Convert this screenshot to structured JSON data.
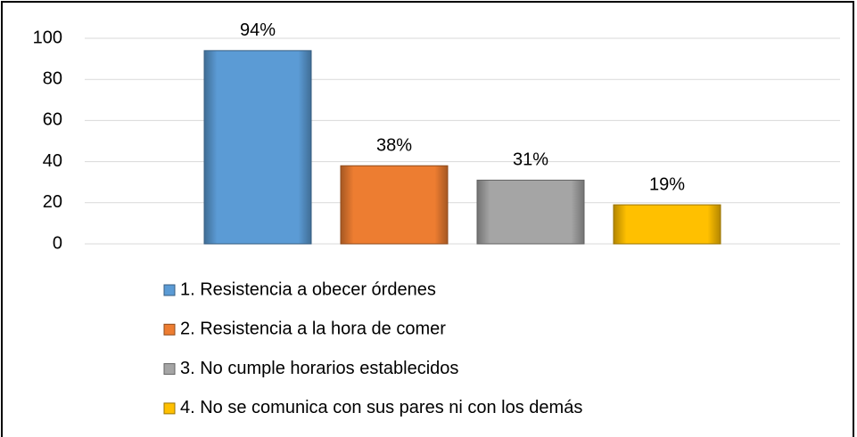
{
  "chart_data": {
    "type": "bar",
    "series": [
      {
        "name": "1. Resistencia a obecer órdenes",
        "color": "#5b9bd5",
        "values": [
          94
        ],
        "value_labels": [
          "94%"
        ]
      },
      {
        "name": "2. Resistencia a la hora de comer",
        "color": "#ed7d31",
        "values": [
          38
        ],
        "value_labels": [
          "38%"
        ]
      },
      {
        "name": "3. No cumple horarios establecidos",
        "color": "#a5a5a5",
        "values": [
          31
        ],
        "value_labels": [
          "31%"
        ]
      },
      {
        "name": "4. No se comunica con sus pares ni con los demás",
        "color": "#ffc000",
        "values": [
          19
        ],
        "value_labels": [
          "19%"
        ]
      }
    ],
    "ylim": [
      0,
      100
    ],
    "yticks": [
      0,
      20,
      40,
      60,
      80,
      100
    ],
    "grid": true,
    "legend": "bottom"
  }
}
